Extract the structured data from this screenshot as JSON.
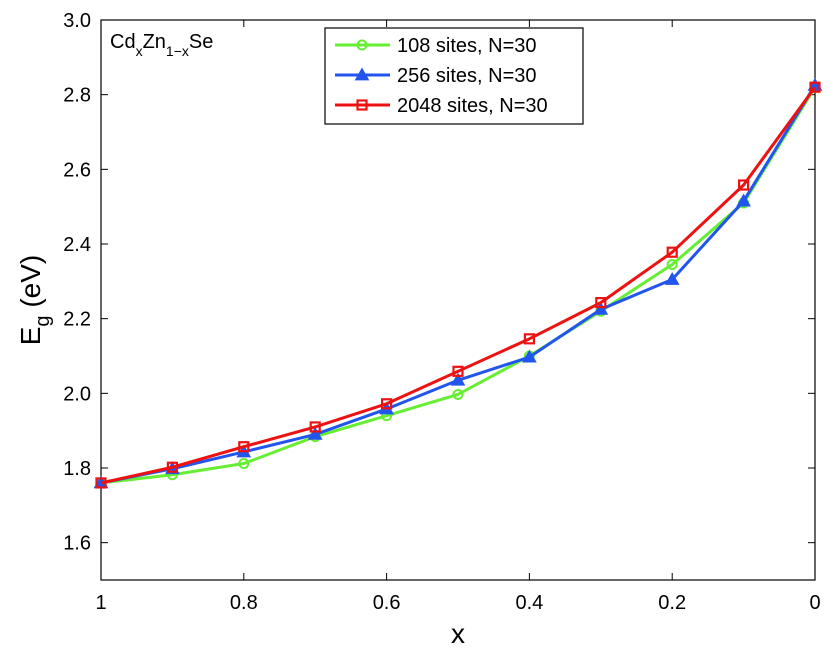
{
  "chart_data": {
    "type": "line",
    "title": "",
    "xlabel": "x",
    "ylabel_main": "E",
    "ylabel_sub": "g",
    "ylabel_unit": " (eV)",
    "xlim": [
      1,
      0
    ],
    "ylim": [
      1.5,
      3.0
    ],
    "x_reversed": true,
    "xticks": [
      1,
      0.8,
      0.6,
      0.4,
      0.2,
      0
    ],
    "xtick_labels": [
      "1",
      "0.8",
      "0.6",
      "0.4",
      "0.2",
      "0"
    ],
    "yticks": [
      1.6,
      1.8,
      2.0,
      2.2,
      2.4,
      2.6,
      2.8,
      3.0
    ],
    "ytick_labels": [
      "1.6",
      "1.8",
      "2.0",
      "2.2",
      "2.4",
      "2.6",
      "2.8",
      "3.0"
    ],
    "grid": false,
    "legend_position": "top-center",
    "annotation": {
      "base1": "Cd",
      "sub1": "x",
      "base2": "Zn",
      "sub2": "1−x",
      "base3": "Se"
    },
    "x": [
      1,
      0.9,
      0.8,
      0.7,
      0.6,
      0.5,
      0.4,
      0.3,
      0.2,
      0.1,
      0
    ],
    "series": [
      {
        "name": "108 sites, N=30",
        "color": "#66ee33",
        "marker": "circle",
        "values": [
          1.76,
          1.782,
          1.812,
          1.884,
          1.94,
          1.997,
          2.1,
          2.22,
          2.345,
          2.51,
          2.82
        ]
      },
      {
        "name": "256 sites, N=30",
        "color": "#2255ee",
        "marker": "triangle",
        "values": [
          1.76,
          1.798,
          1.843,
          1.89,
          1.958,
          2.035,
          2.097,
          2.225,
          2.305,
          2.515,
          2.825
        ]
      },
      {
        "name": "2048 sites, N=30",
        "color": "#ee1111",
        "marker": "square",
        "values": [
          1.76,
          1.802,
          1.857,
          1.91,
          1.972,
          2.059,
          2.146,
          2.243,
          2.378,
          2.558,
          2.82
        ]
      }
    ]
  }
}
